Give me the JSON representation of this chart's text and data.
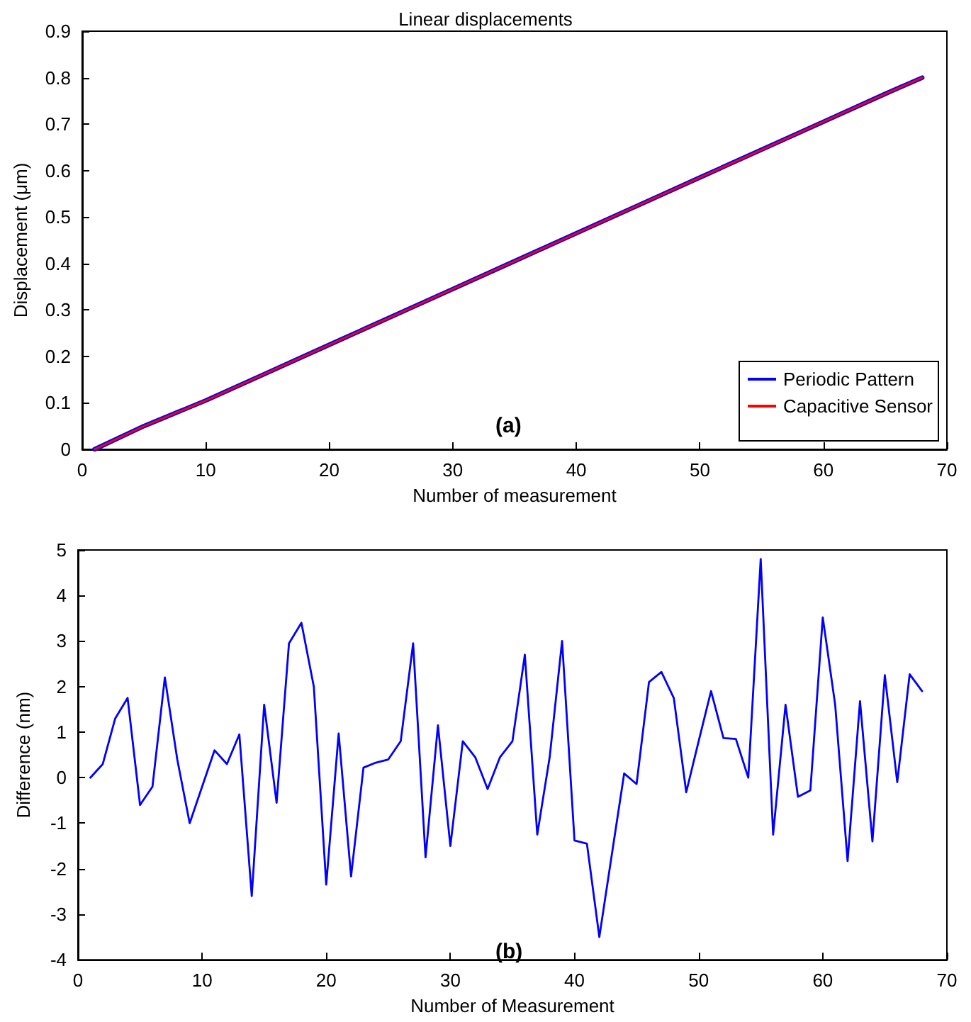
{
  "chart_data": [
    {
      "type": "line",
      "title": "Linear displacements",
      "xlabel": "Number of measurement",
      "ylabel": "Displacement (μm)",
      "annotations": [
        "(a)"
      ],
      "series": [
        {
          "name": "Periodic Pattern",
          "color": "#0000ff",
          "x": [
            1,
            5,
            10,
            15,
            20,
            25,
            30,
            35,
            40,
            45,
            50,
            55,
            60,
            65,
            68
          ],
          "values": [
            0,
            0.05,
            0.105,
            0.165,
            0.225,
            0.285,
            0.345,
            0.405,
            0.465,
            0.525,
            0.585,
            0.645,
            0.705,
            0.765,
            0.8
          ]
        },
        {
          "name": "Capacitive Sensor",
          "color": "#ff0000",
          "x": [
            1,
            5,
            10,
            15,
            20,
            25,
            30,
            35,
            40,
            45,
            50,
            55,
            60,
            65,
            68
          ],
          "values": [
            0,
            0.05,
            0.105,
            0.165,
            0.225,
            0.285,
            0.345,
            0.405,
            0.465,
            0.525,
            0.585,
            0.645,
            0.705,
            0.765,
            0.8
          ]
        }
      ],
      "xlim": [
        0,
        70
      ],
      "xticks": [
        0,
        10,
        20,
        30,
        40,
        50,
        60,
        70
      ],
      "ylim": [
        0,
        0.9
      ],
      "yticks": [
        0,
        0.1,
        0.2,
        0.3,
        0.4,
        0.5,
        0.6,
        0.7,
        0.8,
        0.9
      ],
      "grid": false,
      "legend": "bottom right",
      "marker": "none",
      "line_style": "solid"
    },
    {
      "type": "line",
      "xlabel": "Number of Measurement",
      "ylabel": "Difference (nm)",
      "annotations": [
        "(b)"
      ],
      "series": [
        {
          "color": "#0000ff",
          "x": [
            1,
            2,
            3,
            4,
            5,
            6,
            7,
            8,
            9,
            10,
            11,
            12,
            13,
            14,
            15,
            16,
            17,
            18,
            19,
            20,
            21,
            22,
            23,
            24,
            25,
            26,
            27,
            28,
            29,
            30,
            31,
            32,
            33,
            34,
            35,
            36,
            37,
            38,
            39,
            40,
            41,
            42,
            43,
            44,
            45,
            46,
            47,
            48,
            49,
            50,
            51,
            52,
            53,
            54,
            55,
            56,
            57,
            58,
            59,
            60,
            61,
            62,
            63,
            64,
            65,
            66,
            67,
            68
          ],
          "values": [
            0,
            0.3,
            1.3,
            1.75,
            -0.6,
            -0.2,
            2.2,
            0.4,
            -1.0,
            -0.2,
            0.6,
            0.3,
            0.95,
            -2.6,
            1.6,
            -0.55,
            2.95,
            3.4,
            2.0,
            -2.35,
            0.97,
            -2.17,
            0.22,
            0.33,
            0.4,
            0.8,
            2.95,
            -1.75,
            1.15,
            -1.5,
            0.8,
            0.45,
            -0.25,
            0.45,
            0.8,
            2.7,
            -1.25,
            0.45,
            3.0,
            -1.38,
            -1.45,
            -3.5,
            -1.7,
            0.09,
            -0.14,
            2.1,
            2.32,
            1.75,
            -0.32,
            0.8,
            1.9,
            0.87,
            0.85,
            0,
            4.8,
            -1.25,
            1.6,
            -0.42,
            -0.28,
            3.52,
            1.6,
            -1.83,
            1.68,
            -1.4,
            2.25,
            -0.1,
            2.27,
            1.9
          ]
        }
      ],
      "xlim": [
        0,
        70
      ],
      "xticks": [
        0,
        10,
        20,
        30,
        40,
        50,
        60,
        70
      ],
      "ylim": [
        -4,
        5
      ],
      "yticks": [
        -4,
        -3,
        -2,
        -1,
        0,
        1,
        2,
        3,
        4,
        5
      ],
      "grid": false,
      "legend": false,
      "marker": "none",
      "line_style": "solid"
    }
  ]
}
